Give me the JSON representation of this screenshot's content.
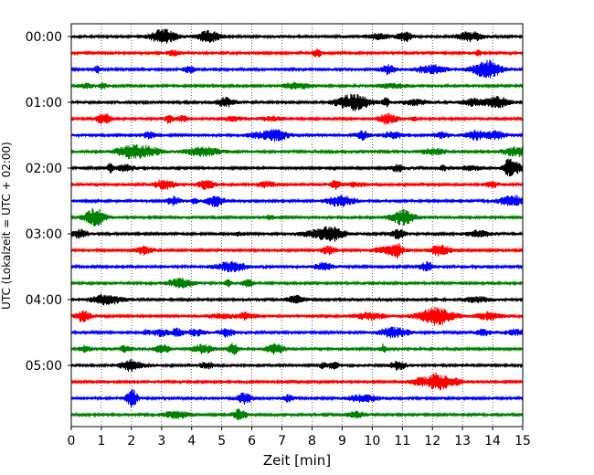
{
  "chart_data": {
    "type": "line",
    "title": "",
    "xlabel": "Zeit  [min]",
    "ylabel": "UTC (Lokalzeit = UTC + 02:00)",
    "xlim": [
      0,
      15
    ],
    "x_ticks": [
      "0",
      "1",
      "2",
      "3",
      "4",
      "5",
      "6",
      "7",
      "8",
      "9",
      "10",
      "11",
      "12",
      "13",
      "14",
      "15"
    ],
    "y_ticks": [
      "00:00",
      "01:00",
      "02:00",
      "03:00",
      "04:00",
      "05:00"
    ],
    "grid": "vertical dotted at each minute",
    "trace_interval_min": 15,
    "trace_count": 24,
    "trace_colors": [
      "#000000",
      "#ff0000",
      "#0000ff",
      "#008000"
    ]
  }
}
